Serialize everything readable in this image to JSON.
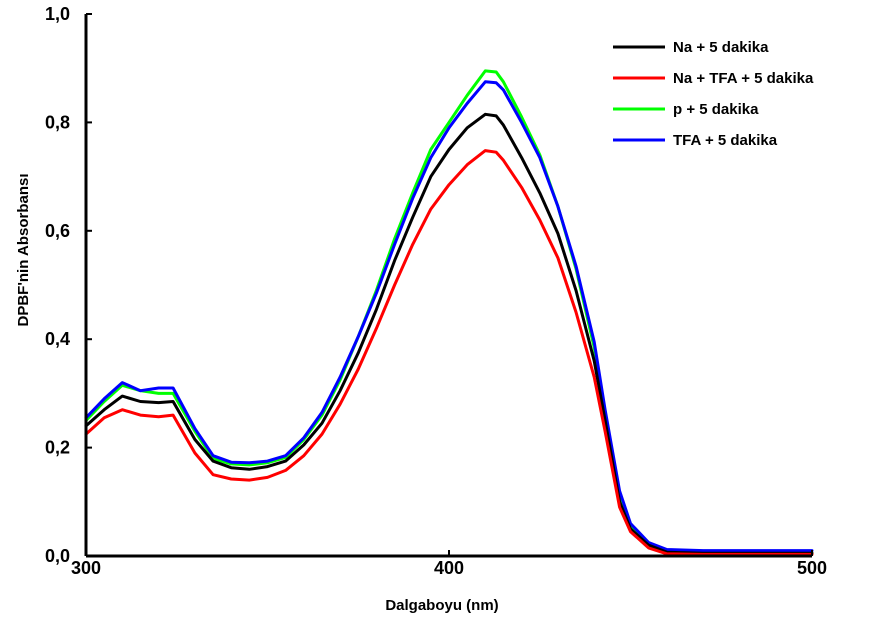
{
  "chart_data": {
    "type": "line",
    "xlabel": "Dalgaboyu (nm)",
    "ylabel": "DPBF'nin Absorbansı",
    "xlim": [
      300,
      500
    ],
    "ylim": [
      0,
      1.0
    ],
    "x_ticks": [
      {
        "value": 300,
        "label": "300"
      },
      {
        "value": 400,
        "label": "400"
      },
      {
        "value": 500,
        "label": "500"
      }
    ],
    "y_ticks": [
      {
        "value": 0.0,
        "label": "0,0"
      },
      {
        "value": 0.2,
        "label": "0,2"
      },
      {
        "value": 0.4,
        "label": "0,4"
      },
      {
        "value": 0.6,
        "label": "0,6"
      },
      {
        "value": 0.8,
        "label": "0,8"
      },
      {
        "value": 1.0,
        "label": "1,0"
      }
    ],
    "grid": false,
    "legend_position": "top-right",
    "x": [
      300,
      305,
      310,
      315,
      320,
      324,
      330,
      335,
      340,
      345,
      350,
      355,
      360,
      365,
      370,
      375,
      380,
      385,
      390,
      395,
      400,
      405,
      410,
      413,
      415,
      420,
      425,
      430,
      435,
      440,
      443,
      447,
      450,
      455,
      460,
      470,
      480,
      490,
      500
    ],
    "series": [
      {
        "name": "Na + 5 dakika",
        "color": "#000000",
        "values": [
          0.24,
          0.27,
          0.295,
          0.285,
          0.283,
          0.285,
          0.215,
          0.175,
          0.163,
          0.16,
          0.165,
          0.175,
          0.205,
          0.245,
          0.305,
          0.375,
          0.455,
          0.545,
          0.625,
          0.7,
          0.75,
          0.79,
          0.815,
          0.812,
          0.795,
          0.735,
          0.67,
          0.595,
          0.49,
          0.36,
          0.25,
          0.1,
          0.05,
          0.02,
          0.007,
          0.005,
          0.005,
          0.005,
          0.005
        ]
      },
      {
        "name": "Na + TFA + 5 dakika",
        "color": "#ff0000",
        "values": [
          0.225,
          0.255,
          0.27,
          0.26,
          0.257,
          0.26,
          0.19,
          0.15,
          0.142,
          0.14,
          0.145,
          0.158,
          0.185,
          0.225,
          0.28,
          0.345,
          0.42,
          0.5,
          0.575,
          0.64,
          0.685,
          0.722,
          0.748,
          0.745,
          0.73,
          0.68,
          0.62,
          0.55,
          0.45,
          0.33,
          0.23,
          0.09,
          0.045,
          0.015,
          0.004,
          0.003,
          0.003,
          0.003,
          0.003
        ]
      },
      {
        "name": "p + 5 dakika",
        "color": "#00ff00",
        "values": [
          0.25,
          0.285,
          0.315,
          0.305,
          0.3,
          0.3,
          0.23,
          0.18,
          0.17,
          0.168,
          0.172,
          0.182,
          0.215,
          0.26,
          0.325,
          0.405,
          0.49,
          0.585,
          0.67,
          0.75,
          0.8,
          0.85,
          0.895,
          0.893,
          0.875,
          0.81,
          0.74,
          0.645,
          0.53,
          0.385,
          0.26,
          0.11,
          0.055,
          0.02,
          0.006,
          0.005,
          0.005,
          0.005,
          0.005
        ]
      },
      {
        "name": "TFA + 5 dakika",
        "color": "#0000ff",
        "values": [
          0.255,
          0.29,
          0.32,
          0.305,
          0.31,
          0.31,
          0.235,
          0.185,
          0.173,
          0.172,
          0.175,
          0.185,
          0.218,
          0.265,
          0.33,
          0.405,
          0.485,
          0.575,
          0.66,
          0.735,
          0.79,
          0.835,
          0.875,
          0.873,
          0.86,
          0.8,
          0.735,
          0.645,
          0.535,
          0.395,
          0.27,
          0.12,
          0.06,
          0.025,
          0.012,
          0.01,
          0.01,
          0.01,
          0.01
        ]
      }
    ]
  }
}
